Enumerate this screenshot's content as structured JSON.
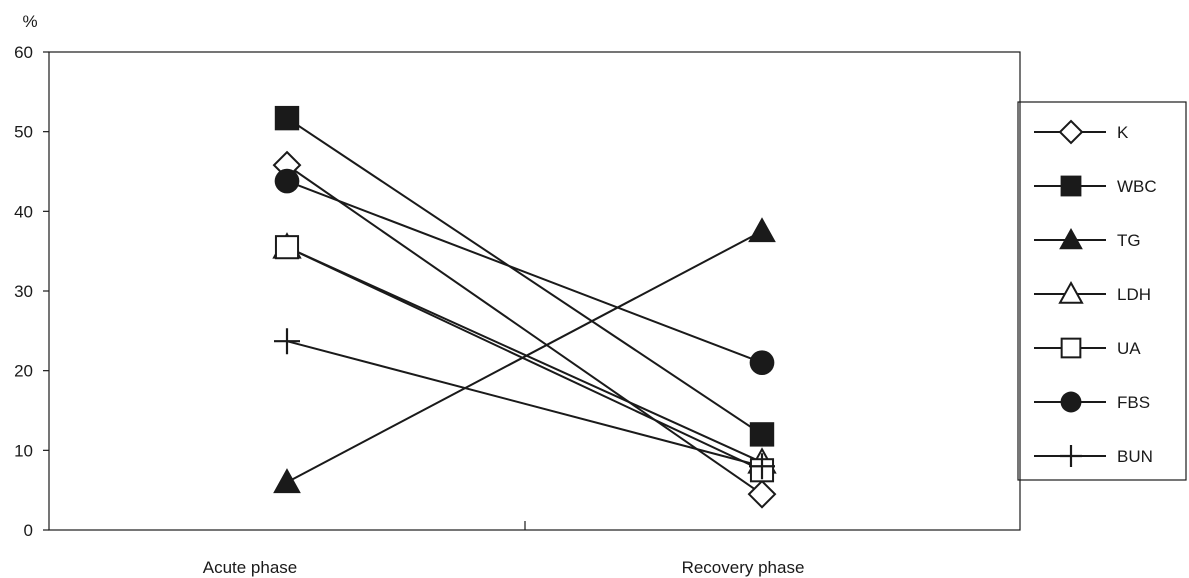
{
  "chart_data": {
    "type": "line",
    "title": "",
    "xlabel": "",
    "ylabel": "%",
    "ylim": [
      0,
      60
    ],
    "yticks": [
      0,
      10,
      20,
      30,
      40,
      50,
      60
    ],
    "grid": false,
    "legend_position": "right",
    "categories": [
      "Acute phase",
      "Recovery phase"
    ],
    "series": [
      {
        "name": "K",
        "marker": "diamond-open",
        "values": [
          45.8,
          4.5
        ]
      },
      {
        "name": "WBC",
        "marker": "square-filled",
        "values": [
          51.7,
          12.0
        ]
      },
      {
        "name": "TG",
        "marker": "triangle-filled",
        "values": [
          6.0,
          37.5
        ]
      },
      {
        "name": "LDH",
        "marker": "triangle-open",
        "values": [
          35.5,
          8.5
        ]
      },
      {
        "name": "UA",
        "marker": "square-open",
        "values": [
          35.5,
          7.5
        ]
      },
      {
        "name": "FBS",
        "marker": "circle-filled",
        "values": [
          43.8,
          21.0
        ]
      },
      {
        "name": "BUN",
        "marker": "plus",
        "values": [
          23.7,
          8.0
        ]
      }
    ],
    "line_color": "#1a1a1a"
  }
}
